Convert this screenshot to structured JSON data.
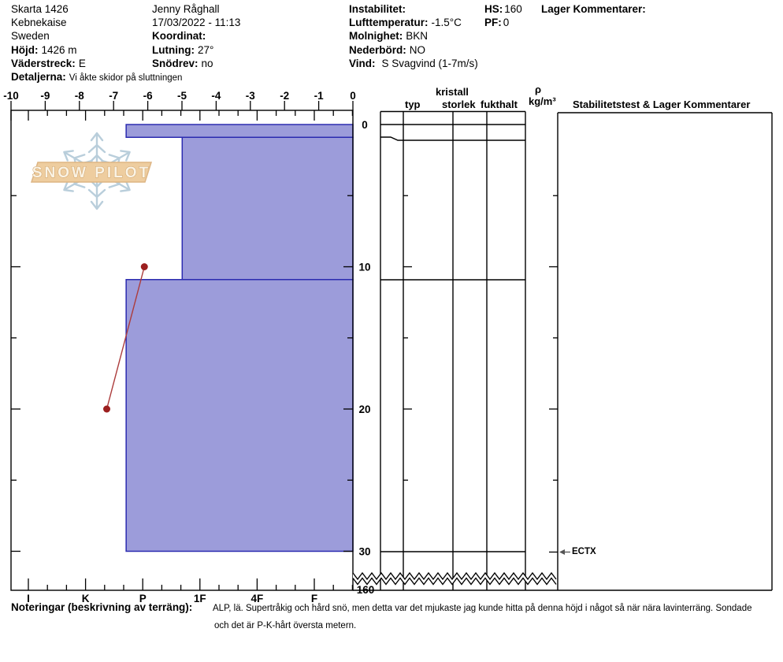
{
  "header": {
    "left": {
      "pit_name": "Skarta 1426",
      "range": "Kebnekaise",
      "country": "Sweden",
      "hojd_label": "Höjd:",
      "hojd_value": "1426 m",
      "vaderstreck_label": "Väderstreck:",
      "vaderstreck_value": "E",
      "detaljerna_label": "Detaljerna:",
      "detaljerna_value": "Vi åkte skidor på sluttningen"
    },
    "middle": {
      "observer": "Jenny Råghall",
      "datetime": "17/03/2022 - 11:13",
      "koordinat_label": "Koordinat:",
      "koordinat_value": "",
      "lutning_label": "Lutning:",
      "lutning_value": "27°",
      "snodrev_label": "Snödrev:",
      "snodrev_value": "no"
    },
    "weather": {
      "instabilitet_label": "Instabilitet:",
      "instabilitet_value": "",
      "lufttemperatur_label": "Lufttemperatur:",
      "lufttemperatur_value": "-1.5°C",
      "molnighet_label": "Molnighet:",
      "molnighet_value": "BKN",
      "nederbord_label": "Nederbörd:",
      "nederbord_value": "NO",
      "vind_label": "Vind:",
      "vind_value": "S Svagvind (1-7m/s)"
    },
    "snowpack": {
      "hs_label": "HS:",
      "hs_value": "160",
      "pf_label": "PF:",
      "pf_value": "0"
    },
    "lager_label": "Lager Kommentarer:"
  },
  "logo": {
    "text": "SNOW PILOT"
  },
  "table_headers": {
    "typ": "typ",
    "kristall": "kristall",
    "storlek": "storlek",
    "fukthalt": "fukthalt",
    "rho": "ρ",
    "rho_unit": "kg/m³",
    "stability": "Stabilitetstest & Lager Kommentarer"
  },
  "notes": {
    "label": "Noteringar (beskrivning av terräng):",
    "line1": "ALP, lä. Supertråkig och hård snö, men detta var det mjukaste jag kunde hitta på denna höjd i något så när nära lavinterräng. Sondade",
    "line2": "och det är P-K-hårt översta metern."
  },
  "chart_data": {
    "type": "snow-profile",
    "temp_axis": {
      "ticks": [
        -10,
        -9,
        -8,
        -7,
        -6,
        -5,
        -4,
        -3,
        -2,
        -1,
        0
      ],
      "range": [
        -10,
        0
      ],
      "position": "top"
    },
    "hardness_axis": {
      "categories": [
        "I",
        "K",
        "P",
        "1F",
        "4F",
        "F"
      ],
      "position": "bottom",
      "note": "hardness_index scale: 0=I,1=K,2=P,3=1F,4=4F,5=F"
    },
    "depth_axis": {
      "tick_labels": [
        0,
        10,
        20,
        30
      ],
      "minor_tick_step_cm": 5,
      "profile_bottom_cm": 30,
      "total_hs_cm": 160,
      "break_label": "160"
    },
    "layers": [
      {
        "top_cm": 0,
        "bottom_cm": 0.9,
        "hardness_index": 1.71,
        "hardness_label": "P+"
      },
      {
        "top_cm": 0.9,
        "bottom_cm": 10.9,
        "hardness_index": 2.69,
        "hardness_label": "P-"
      },
      {
        "top_cm": 10.9,
        "bottom_cm": 30,
        "hardness_index": 1.71,
        "hardness_label": "P+"
      }
    ],
    "temperature_profile": [
      {
        "depth_cm": 10,
        "temp_c": -6.1
      },
      {
        "depth_cm": 20,
        "temp_c": -7.2
      }
    ],
    "stability_tests": [
      {
        "depth_cm": 30,
        "result": "ECTX"
      }
    ],
    "colors": {
      "bar_fill": "#9c9cda",
      "bar_border": "#2b2bb0",
      "temp_line": "#ac3c3c",
      "temp_marker": "#9c1f1f",
      "logo_flake": "#b9cedb",
      "logo_banner": "#eecd9f",
      "logo_banner_border": "#ddb584",
      "logo_text_fill": "#faf3e4",
      "logo_text_stroke": "#cfa26b"
    }
  }
}
